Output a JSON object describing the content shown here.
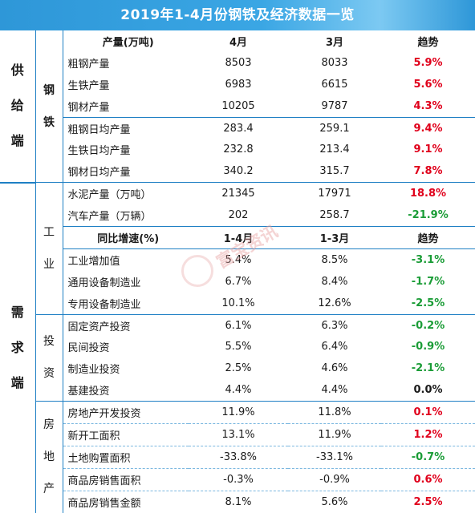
{
  "title": "2019年1-4月份钢铁及经济数据一览",
  "watermark": "富宝资讯",
  "supply": {
    "category": [
      "供",
      "给",
      "端"
    ],
    "group": [
      "钢",
      "铁"
    ],
    "header": {
      "item": "产量(万吨)",
      "c1": "4月",
      "c2": "3月",
      "c3": "趋势"
    },
    "rows": [
      {
        "item": "粗钢产量",
        "c1": "8503",
        "c2": "8033",
        "trend": "5.9%"
      },
      {
        "item": "生铁产量",
        "c1": "6983",
        "c2": "6615",
        "trend": "5.6%"
      },
      {
        "item": "钢材产量",
        "c1": "10205",
        "c2": "9787",
        "trend": "4.3%"
      },
      {
        "item": "粗钢日均产量",
        "c1": "283.4",
        "c2": "259.1",
        "trend": "9.4%"
      },
      {
        "item": "生铁日均产量",
        "c1": "232.8",
        "c2": "213.4",
        "trend": "9.1%"
      },
      {
        "item": "钢材日均产量",
        "c1": "340.2",
        "c2": "315.7",
        "trend": "7.8%"
      }
    ]
  },
  "demand": {
    "category": [
      "需",
      "求",
      "端"
    ],
    "industry": {
      "group": [
        "工",
        "业"
      ],
      "rows_top": [
        {
          "item": "水泥产量（万吨）",
          "c1": "21345",
          "c2": "17971",
          "trend": "18.8%"
        },
        {
          "item": "汽车产量（万辆）",
          "c1": "202",
          "c2": "258.7",
          "trend": "-21.9%"
        }
      ],
      "header": {
        "item": "同比增速(%)",
        "c1": "1-4月",
        "c2": "1-3月",
        "c3": "趋势"
      },
      "rows": [
        {
          "item": "工业增加值",
          "c1": "5.4%",
          "c2": "8.5%",
          "trend": "-3.1%"
        },
        {
          "item": "通用设备制造业",
          "c1": "6.7%",
          "c2": "8.4%",
          "trend": "-1.7%"
        },
        {
          "item": "专用设备制造业",
          "c1": "10.1%",
          "c2": "12.6%",
          "trend": "-2.5%"
        }
      ]
    },
    "investment": {
      "group": [
        "投",
        "资"
      ],
      "rows": [
        {
          "item": "固定资产投资",
          "c1": "6.1%",
          "c2": "6.3%",
          "trend": "-0.2%"
        },
        {
          "item": "民间投资",
          "c1": "5.5%",
          "c2": "6.4%",
          "trend": "-0.9%"
        },
        {
          "item": "制造业投资",
          "c1": "2.5%",
          "c2": "4.6%",
          "trend": "-2.1%"
        },
        {
          "item": "基建投资",
          "c1": "4.4%",
          "c2": "4.4%",
          "trend": "0.0%"
        }
      ]
    },
    "real_estate": {
      "group": [
        "房",
        "地",
        "产"
      ],
      "rows": [
        {
          "item": "房地产开发投资",
          "c1": "11.9%",
          "c2": "11.8%",
          "trend": "0.1%"
        },
        {
          "item": "新开工面积",
          "c1": "13.1%",
          "c2": "11.9%",
          "trend": "1.2%"
        },
        {
          "item": "土地购置面积",
          "c1": "-33.8%",
          "c2": "-33.1%",
          "trend": "-0.7%"
        },
        {
          "item": "商品房销售面积",
          "c1": "-0.3%",
          "c2": "-0.9%",
          "trend": "0.6%"
        },
        {
          "item": "商品房销售金额",
          "c1": "8.1%",
          "c2": "5.6%",
          "trend": "2.5%"
        }
      ]
    }
  },
  "colors": {
    "header_blue": "#2e97d8",
    "rule_blue": "#1e7fc4",
    "up_red": "#e0001b",
    "down_green": "#1a9c36"
  }
}
